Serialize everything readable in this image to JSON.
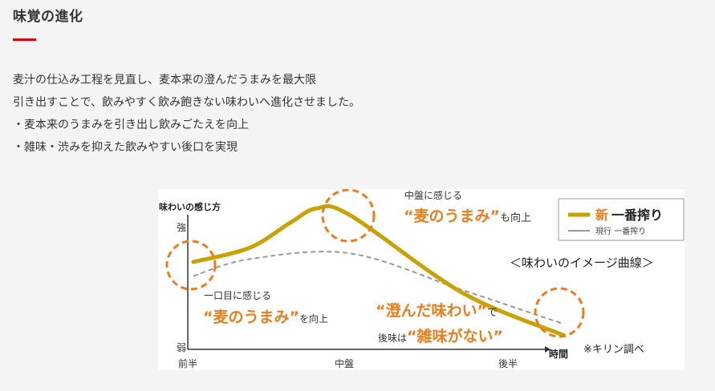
{
  "section": {
    "title": "味覚の進化",
    "accent_color": "#d7000f"
  },
  "description": {
    "lines": [
      "麦汁の仕込み工程を見直し、麦本来の澄んだうまみを最大限",
      "引き出すことで、飲みやすく飲み飽きない味わいへ進化させました。",
      "・麦本来のうまみを引き出し飲みごたえを向上",
      "・雑味・渋みを抑えた飲みやすい後口を実現"
    ]
  },
  "chart_data": {
    "type": "line",
    "title": "＜味わいのイメージ曲線＞",
    "ylabel": "味わいの感じ方",
    "xlabel": "時間",
    "y_tick_labels": [
      "強",
      "弱"
    ],
    "x_tick_labels": [
      "前半",
      "中盤",
      "後半"
    ],
    "series": [
      {
        "name": "新 一番搾り",
        "name_prefix": "新",
        "name_main": "一番搾り",
        "style": "solid",
        "color": "#c9a100",
        "x": [
          0,
          0.15,
          0.26,
          0.33,
          0.42,
          0.72,
          0.99
        ],
        "y": [
          0.62,
          0.72,
          0.9,
          1.0,
          0.95,
          0.4,
          0.1
        ]
      },
      {
        "name": "現行 一番搾り",
        "style": "dashed",
        "color": "#999999",
        "x": [
          0,
          0.15,
          0.42,
          0.72,
          0.99
        ],
        "y": [
          0.52,
          0.64,
          0.68,
          0.42,
          0.18
        ]
      }
    ],
    "annotations": {
      "start": {
        "small": "一口目に感じる",
        "big": "“麦のうまみ”",
        "suffix": "を向上"
      },
      "peak": {
        "small": "中盤に感じる",
        "big": "“麦のうまみ”",
        "suffix": "も向上"
      },
      "end": {
        "big1": "“澄んだ味わい”",
        "mid": "で",
        "prefix": "後味は",
        "big2": "“雑味がない”"
      }
    },
    "note": "※キリン調べ",
    "highlight_color": "#ed7d1a"
  }
}
